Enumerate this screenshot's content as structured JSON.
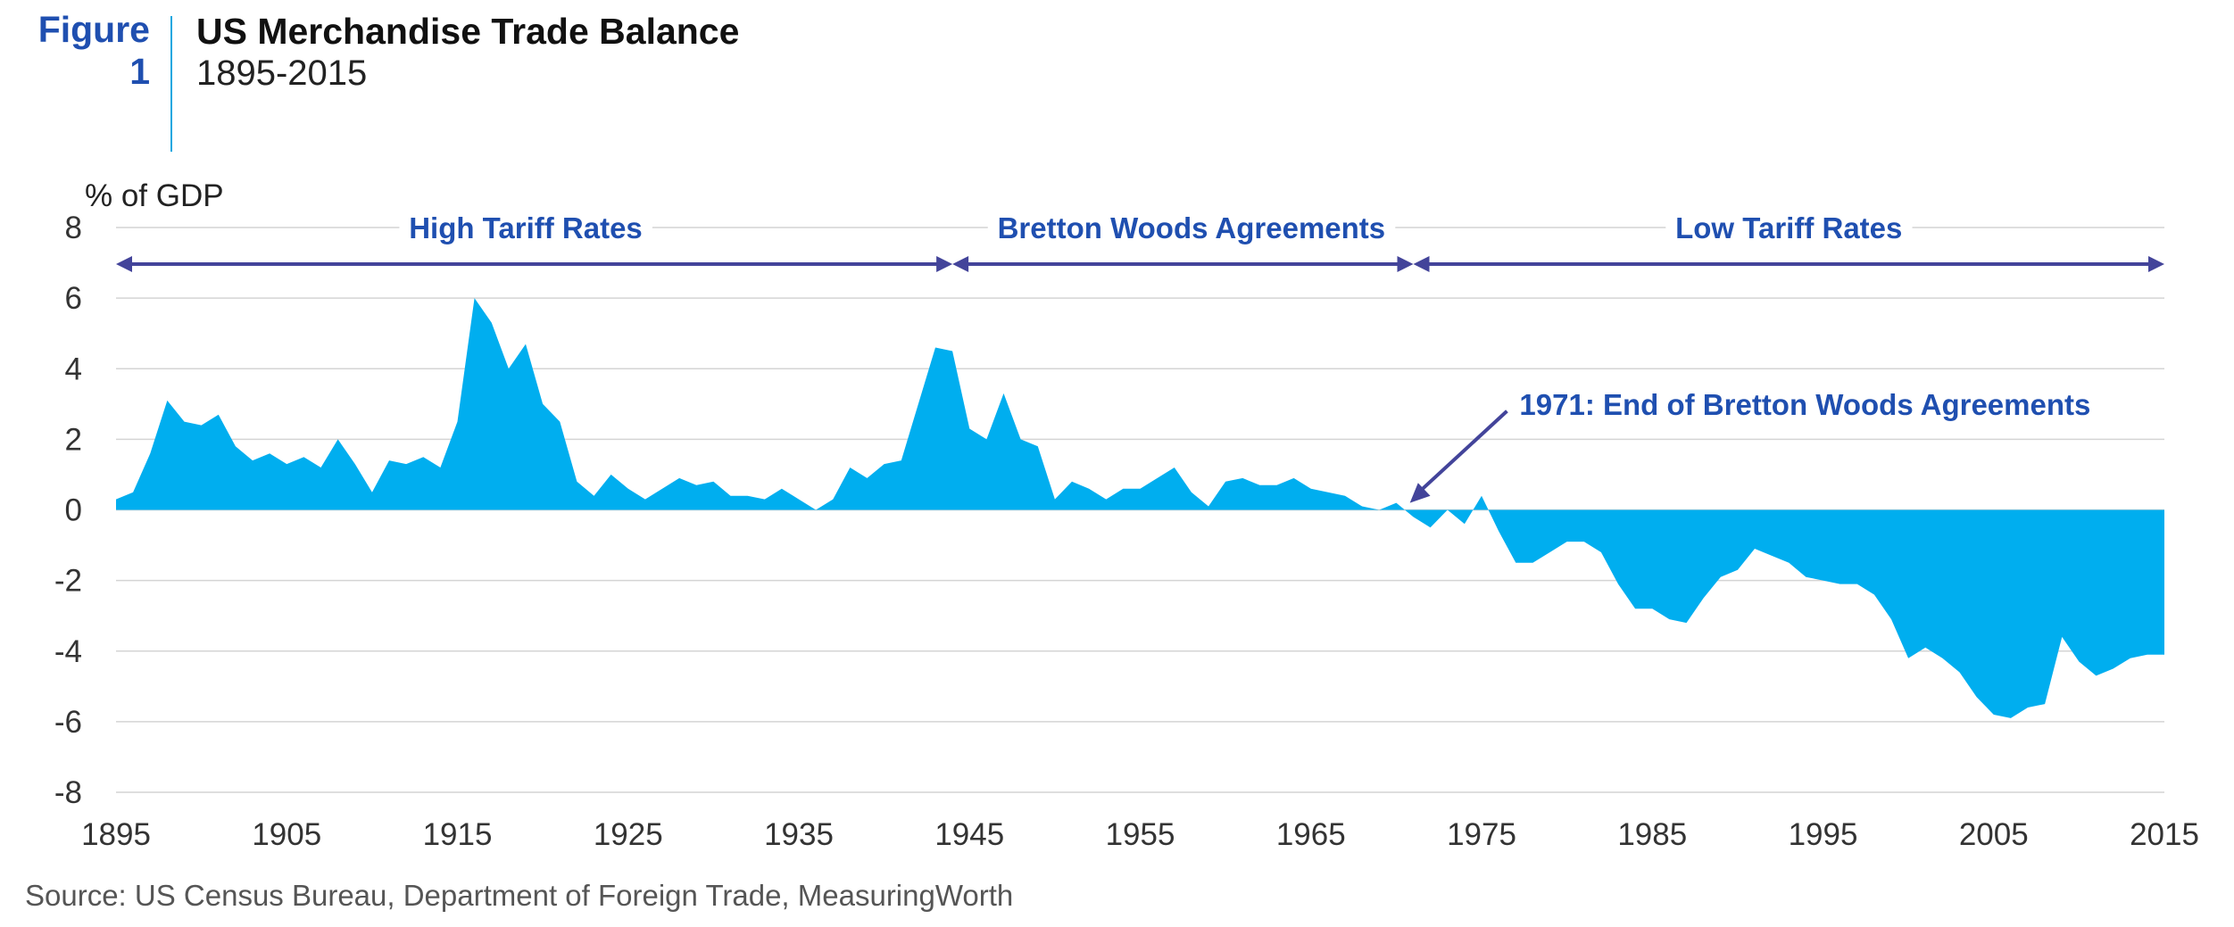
{
  "figure": {
    "label_line1": "Figure",
    "label_line2": "1"
  },
  "header": {
    "title": "US Merchandise Trade Balance",
    "subtitle": "1895-2015"
  },
  "source": "Source: US Census Bureau, Department of Foreign Trade, MeasuringWorth",
  "colors": {
    "area": "#00aeef",
    "accent": "#1f4fb0",
    "arrow": "#43449a",
    "grid": "#d4d4d4"
  },
  "chart_data": {
    "type": "area",
    "title": "US Merchandise Trade Balance",
    "subtitle": "1895-2015",
    "ylabel": "% of GDP",
    "xlabel": "",
    "xlim": [
      1895,
      2015
    ],
    "ylim": [
      -8,
      8
    ],
    "x_ticks": [
      1895,
      1905,
      1915,
      1925,
      1935,
      1945,
      1955,
      1965,
      1975,
      1985,
      1995,
      2005,
      2015
    ],
    "y_ticks": [
      8,
      6,
      4,
      2,
      0,
      -2,
      -4,
      -6,
      -8
    ],
    "grid": "horizontal",
    "legend": "none",
    "series": [
      {
        "x": [
          1895,
          1896,
          1897,
          1898,
          1899,
          1900,
          1901,
          1902,
          1903,
          1904,
          1905,
          1906,
          1907,
          1908,
          1909,
          1910,
          1911,
          1912,
          1913,
          1914,
          1915,
          1916,
          1917,
          1918,
          1919,
          1920,
          1921,
          1922,
          1923,
          1924,
          1925,
          1926,
          1927,
          1928,
          1929,
          1930,
          1931,
          1932,
          1933,
          1934,
          1935,
          1936,
          1937,
          1938,
          1939,
          1940,
          1941,
          1942,
          1943,
          1944,
          1945,
          1946,
          1947,
          1948,
          1949,
          1950,
          1951,
          1952,
          1953,
          1954,
          1955,
          1956,
          1957,
          1958,
          1959,
          1960,
          1961,
          1962,
          1963,
          1964,
          1965,
          1966,
          1967,
          1968,
          1969,
          1970,
          1971,
          1972,
          1973,
          1974,
          1975,
          1976,
          1977,
          1978,
          1979,
          1980,
          1981,
          1982,
          1983,
          1984,
          1985,
          1986,
          1987,
          1988,
          1989,
          1990,
          1991,
          1992,
          1993,
          1994,
          1995,
          1996,
          1997,
          1998,
          1999,
          2000,
          2001,
          2002,
          2003,
          2004,
          2005,
          2006,
          2007,
          2008,
          2009,
          2010,
          2011,
          2012,
          2013,
          2014,
          2015
        ],
        "values": [
          0.3,
          0.5,
          1.6,
          3.1,
          2.5,
          2.4,
          2.7,
          1.8,
          1.4,
          1.6,
          1.3,
          1.5,
          1.2,
          2.0,
          1.3,
          0.5,
          1.4,
          1.3,
          1.5,
          1.2,
          2.5,
          6.0,
          5.3,
          4.0,
          4.7,
          3.0,
          2.5,
          0.8,
          0.4,
          1.0,
          0.6,
          0.3,
          0.6,
          0.9,
          0.7,
          0.8,
          0.4,
          0.4,
          0.3,
          0.6,
          0.3,
          0.0,
          0.3,
          1.2,
          0.9,
          1.3,
          1.4,
          3.0,
          4.6,
          4.5,
          2.3,
          2.0,
          3.3,
          2.0,
          1.8,
          0.3,
          0.8,
          0.6,
          0.3,
          0.6,
          0.6,
          0.9,
          1.2,
          0.5,
          0.1,
          0.8,
          0.9,
          0.7,
          0.7,
          0.9,
          0.6,
          0.5,
          0.4,
          0.1,
          0.0,
          0.2,
          -0.2,
          -0.5,
          0.0,
          -0.4,
          0.4,
          -0.6,
          -1.5,
          -1.5,
          -1.2,
          -0.9,
          -0.9,
          -1.2,
          -2.1,
          -2.8,
          -2.8,
          -3.1,
          -3.2,
          -2.5,
          -1.9,
          -1.7,
          -1.1,
          -1.3,
          -1.5,
          -1.9,
          -2.0,
          -2.1,
          -2.1,
          -2.4,
          -3.1,
          -4.2,
          -3.9,
          -4.2,
          -4.6,
          -5.3,
          -5.8,
          -5.9,
          -5.6,
          -5.5,
          -3.6,
          -4.3,
          -4.7,
          -4.5,
          -4.2,
          -4.1,
          -4.1
        ]
      }
    ],
    "eras": [
      {
        "label": "High Tariff Rates",
        "start": 1895,
        "end": 1944,
        "label_x": 1919
      },
      {
        "label": "Bretton Woods Agreements",
        "start": 1944,
        "end": 1971,
        "label_x": 1958
      },
      {
        "label": "Low Tariff Rates",
        "start": 1971,
        "end": 2015,
        "label_x": 1993
      }
    ],
    "annotations": [
      {
        "text": "1971: End of Bretton Woods Agreements",
        "point_x": 1970.8,
        "point_y": 0.2,
        "text_x": 1976.8,
        "text_y": 2.9
      }
    ]
  }
}
